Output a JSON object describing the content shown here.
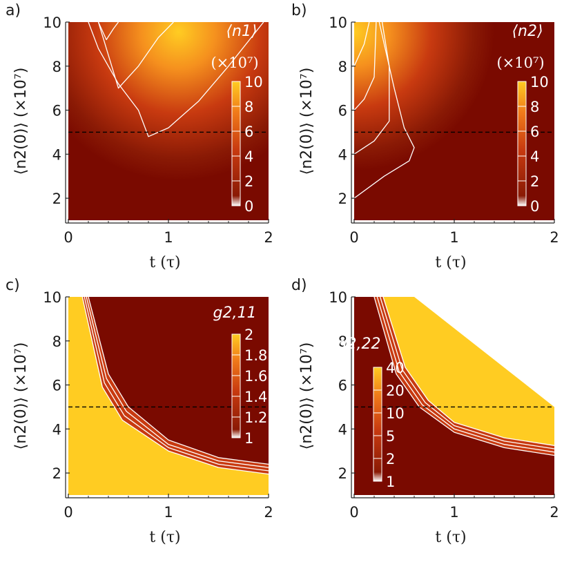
{
  "colors": {
    "dark": "#7a0a00",
    "mid": "#c83a10",
    "bright": "#f07a1a",
    "yellow": "#ffcc22",
    "contour": "#ffffff",
    "dashed": "#000000"
  },
  "chart_data": [
    {
      "type": "heatmap",
      "panel_label": "a)",
      "xlabel": "t (τ)",
      "ylabel": "⟨n2(0)⟩ (×10⁷)",
      "xlim": [
        0,
        2
      ],
      "ylim": [
        1,
        10
      ],
      "x_ticks": [
        "0",
        "1",
        "2"
      ],
      "y_ticks": [
        "2",
        "4",
        "6",
        "8",
        "10"
      ],
      "colorbar": {
        "title": "⟨n1⟩",
        "unit": "(×10⁷)",
        "ticks": [
          "10",
          "8",
          "6",
          "4",
          "2",
          "0"
        ],
        "range": [
          0,
          10
        ]
      },
      "dashed_line_y": 5,
      "contours": [
        {
          "level": 2,
          "points": [
            [
              0.2,
              10
            ],
            [
              0.3,
              8.8
            ],
            [
              0.5,
              7.2
            ],
            [
              0.7,
              6.0
            ],
            [
              0.8,
              4.8
            ],
            [
              1.0,
              5.2
            ],
            [
              1.3,
              6.4
            ],
            [
              1.6,
              8.0
            ],
            [
              1.95,
              10
            ]
          ]
        },
        {
          "level": 4,
          "points": [
            [
              0.3,
              10
            ],
            [
              0.4,
              8.5
            ],
            [
              0.5,
              7.0
            ],
            [
              0.7,
              8.0
            ],
            [
              0.9,
              9.3
            ],
            [
              1.05,
              10
            ]
          ]
        },
        {
          "level": 6,
          "points": [
            [
              0.3,
              10
            ],
            [
              0.38,
              9.2
            ],
            [
              0.45,
              9.7
            ],
            [
              0.5,
              10
            ]
          ]
        }
      ]
    },
    {
      "type": "heatmap",
      "panel_label": "b)",
      "xlabel": "t (τ)",
      "ylabel": "⟨n2(0)⟩ (×10⁷)",
      "xlim": [
        0,
        2
      ],
      "ylim": [
        1,
        10
      ],
      "x_ticks": [
        "0",
        "1",
        "2"
      ],
      "y_ticks": [
        "2",
        "4",
        "6",
        "8",
        "10"
      ],
      "colorbar": {
        "title": "⟨n2⟩",
        "unit": "(×10⁷)",
        "ticks": [
          "10",
          "8",
          "6",
          "4",
          "2",
          "0"
        ],
        "range": [
          0,
          10
        ]
      },
      "dashed_line_y": 5,
      "contours": [
        {
          "level": 2,
          "points": [
            [
              0.0,
              2.0
            ],
            [
              0.3,
              3.0
            ],
            [
              0.55,
              3.7
            ],
            [
              0.6,
              4.3
            ],
            [
              0.5,
              5.2
            ],
            [
              0.4,
              7.0
            ],
            [
              0.3,
              9.0
            ],
            [
              0.25,
              10
            ]
          ]
        },
        {
          "level": 4,
          "points": [
            [
              0.0,
              4.0
            ],
            [
              0.2,
              4.6
            ],
            [
              0.35,
              5.5
            ],
            [
              0.35,
              8.0
            ],
            [
              0.28,
              10
            ]
          ]
        },
        {
          "level": 6,
          "points": [
            [
              0.0,
              6.0
            ],
            [
              0.1,
              6.5
            ],
            [
              0.2,
              7.5
            ],
            [
              0.22,
              10
            ]
          ]
        },
        {
          "level": 8,
          "points": [
            [
              0.0,
              8.0
            ],
            [
              0.1,
              9.0
            ],
            [
              0.15,
              10
            ]
          ]
        }
      ]
    },
    {
      "type": "heatmap",
      "panel_label": "c)",
      "xlabel": "t (τ)",
      "ylabel": "⟨n2(0)⟩ (×10⁷)",
      "xlim": [
        0,
        2
      ],
      "ylim": [
        1,
        10
      ],
      "x_ticks": [
        "0",
        "1",
        "2"
      ],
      "y_ticks": [
        "2",
        "4",
        "6",
        "8",
        "10"
      ],
      "colorbar": {
        "title": "g2,11",
        "unit": "",
        "ticks": [
          "2",
          "1.8",
          "1.6",
          "1.4",
          "1.2",
          "1"
        ],
        "range": [
          1,
          2
        ]
      },
      "dashed_line_y": 5,
      "boundary": "hyperbolic",
      "contours": [
        {
          "level": 1.2,
          "points": [
            [
              0.2,
              10
            ],
            [
              0.4,
              6.5
            ],
            [
              0.6,
              5.0
            ],
            [
              1.0,
              3.5
            ],
            [
              1.5,
              2.7
            ],
            [
              2.0,
              2.4
            ]
          ]
        },
        {
          "level": 1.4,
          "points": [
            [
              0.18,
              10
            ],
            [
              0.38,
              6.3
            ],
            [
              0.58,
              4.8
            ],
            [
              1.0,
              3.3
            ],
            [
              1.5,
              2.55
            ],
            [
              2.0,
              2.25
            ]
          ]
        },
        {
          "level": 1.6,
          "points": [
            [
              0.16,
              10
            ],
            [
              0.36,
              6.1
            ],
            [
              0.56,
              4.6
            ],
            [
              1.0,
              3.15
            ],
            [
              1.5,
              2.4
            ],
            [
              2.0,
              2.1
            ]
          ]
        },
        {
          "level": 1.8,
          "points": [
            [
              0.14,
              10
            ],
            [
              0.34,
              5.9
            ],
            [
              0.54,
              4.4
            ],
            [
              1.0,
              3.0
            ],
            [
              1.5,
              2.25
            ],
            [
              2.0,
              1.95
            ]
          ]
        }
      ]
    },
    {
      "type": "heatmap",
      "panel_label": "d)",
      "xlabel": "t (τ)",
      "ylabel": "⟨n2(0)⟩ (×10⁷)",
      "xlim": [
        0,
        2
      ],
      "ylim": [
        1,
        10
      ],
      "x_ticks": [
        "0",
        "1",
        "2"
      ],
      "y_ticks": [
        "2",
        "4",
        "6",
        "8",
        "10"
      ],
      "colorbar": {
        "title": "g2,22",
        "unit": "",
        "ticks": [
          "40",
          "20",
          "10",
          "5",
          "2",
          "1"
        ],
        "range": [
          1,
          40
        ],
        "scale": "log"
      },
      "dashed_line_y": 5,
      "boundary": "hyperbolic",
      "clip_line": [
        [
          0.6,
          10
        ],
        [
          2.0,
          5.0
        ]
      ],
      "contours": [
        {
          "level": 2,
          "points": [
            [
              0.2,
              10
            ],
            [
              0.42,
              6.5
            ],
            [
              0.65,
              5.0
            ],
            [
              1.0,
              3.85
            ],
            [
              1.5,
              3.15
            ],
            [
              2.0,
              2.8
            ]
          ]
        },
        {
          "level": 5,
          "points": [
            [
              0.23,
              10
            ],
            [
              0.45,
              6.6
            ],
            [
              0.68,
              5.1
            ],
            [
              1.0,
              4.0
            ],
            [
              1.5,
              3.3
            ],
            [
              2.0,
              2.95
            ]
          ]
        },
        {
          "level": 10,
          "points": [
            [
              0.26,
              10
            ],
            [
              0.48,
              6.7
            ],
            [
              0.71,
              5.2
            ],
            [
              1.0,
              4.15
            ],
            [
              1.5,
              3.45
            ],
            [
              2.0,
              3.1
            ]
          ]
        },
        {
          "level": 20,
          "points": [
            [
              0.29,
              10
            ],
            [
              0.51,
              6.8
            ],
            [
              0.74,
              5.3
            ],
            [
              1.0,
              4.3
            ],
            [
              1.5,
              3.6
            ],
            [
              2.0,
              3.25
            ]
          ]
        }
      ]
    }
  ]
}
